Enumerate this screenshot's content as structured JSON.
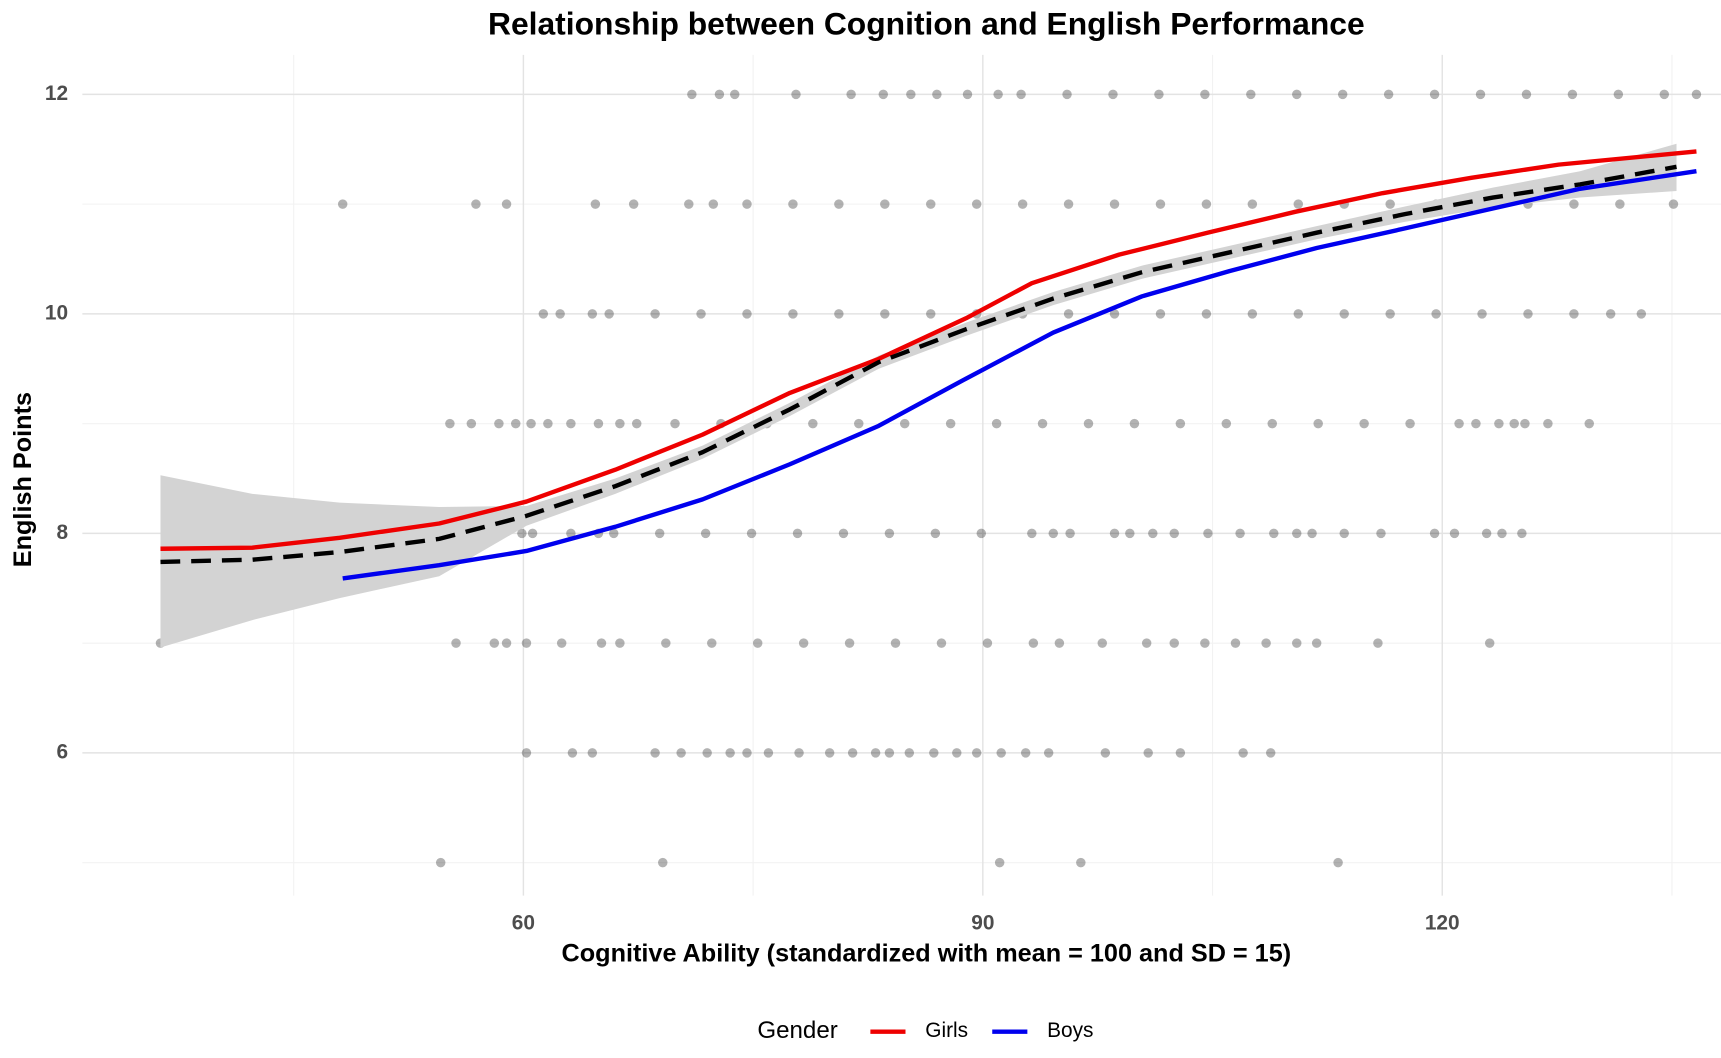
{
  "chart_data": {
    "type": "scatter",
    "title": "Relationship between Cognition and English Performance",
    "x_label": "Cognitive Ability (standardized with mean = 100 and SD = 15)",
    "y_label": "English Points",
    "xlim": [
      31.2,
      138.2
    ],
    "ylim": [
      4.7,
      12.36
    ],
    "xticks": [
      60,
      90,
      120
    ],
    "yticks": [
      6,
      8,
      10,
      12
    ],
    "xminor": [
      45,
      75,
      105,
      135
    ],
    "yminor": [
      5,
      7,
      9,
      11
    ],
    "grid": true,
    "legend_title": "Gender",
    "legend": "bottom",
    "series": [
      {
        "mode": "points",
        "color": "#000000",
        "opacity": 0.3,
        "x": [
          71,
          72.8,
          73.8,
          77.8,
          81.4,
          83.5,
          85.3,
          87,
          89,
          91,
          92.5,
          95.5,
          98.5,
          101.5,
          104.5,
          107.5,
          110.5,
          113.5,
          116.5,
          119.5,
          122.5,
          125.5,
          128.5,
          131.5,
          134.5,
          136.6,
          48.2,
          56.9,
          58.9,
          64.7,
          67.2,
          70.8,
          72.4,
          74.6,
          77.6,
          80.6,
          83.6,
          86.6,
          89.6,
          92.6,
          95.6,
          98.6,
          101.6,
          104.6,
          107.6,
          110.6,
          113.6,
          116.6,
          119.6,
          122.6,
          125.6,
          128.6,
          131.6,
          135.1,
          61.3,
          62.4,
          64.5,
          65.6,
          68.6,
          71.6,
          74.6,
          77.6,
          80.6,
          83.6,
          86.6,
          89.6,
          92.6,
          95.6,
          98.6,
          101.6,
          104.6,
          107.6,
          110.6,
          113.6,
          116.6,
          119.6,
          122.6,
          125.6,
          128.6,
          131,
          133,
          55.2,
          56.6,
          58.4,
          59.5,
          60.5,
          61.6,
          63.1,
          64.9,
          66.3,
          67.4,
          69.9,
          72.9,
          75.9,
          78.9,
          81.9,
          84.9,
          87.9,
          90.9,
          93.9,
          96.9,
          99.9,
          102.9,
          105.9,
          108.9,
          111.9,
          114.9,
          117.9,
          121.1,
          122.2,
          123.7,
          124.7,
          125.4,
          126.9,
          129.6,
          45.2,
          47,
          48,
          52.7,
          54.1,
          59.9,
          60.6,
          63.1,
          64.9,
          65.9,
          68.9,
          71.9,
          74.9,
          77.9,
          80.9,
          83.9,
          86.9,
          89.9,
          93.2,
          94.6,
          95.7,
          98.6,
          99.6,
          101.1,
          102.5,
          104.7,
          106.8,
          109,
          110.5,
          111.5,
          113.6,
          116,
          119.5,
          120.8,
          122.9,
          123.9,
          125.2,
          36.3,
          55.6,
          58.1,
          58.9,
          60.2,
          62.5,
          65.1,
          66.3,
          69.3,
          72.3,
          75.3,
          78.3,
          81.3,
          84.3,
          87.3,
          90.3,
          93.3,
          95,
          97.8,
          100.7,
          102.5,
          104.5,
          106.5,
          108.5,
          110.5,
          111.8,
          115.8,
          123.1,
          60.2,
          63.2,
          64.5,
          68.6,
          70.3,
          72,
          73.5,
          74.6,
          76,
          78,
          80,
          81.5,
          83,
          83.9,
          85.2,
          86.8,
          88.3,
          89.6,
          91.2,
          92.8,
          94.3,
          98,
          100.8,
          102.9,
          107,
          108.8,
          54.6,
          69.1,
          91.1,
          96.4,
          113.2
        ],
        "values": [
          12,
          12,
          12,
          12,
          12,
          12,
          12,
          12,
          12,
          12,
          12,
          12,
          12,
          12,
          12,
          12,
          12,
          12,
          12,
          12,
          12,
          12,
          12,
          12,
          12,
          12,
          11,
          11,
          11,
          11,
          11,
          11,
          11,
          11,
          11,
          11,
          11,
          11,
          11,
          11,
          11,
          11,
          11,
          11,
          11,
          11,
          11,
          11,
          11,
          11,
          11,
          11,
          11,
          11,
          10,
          10,
          10,
          10,
          10,
          10,
          10,
          10,
          10,
          10,
          10,
          10,
          10,
          10,
          10,
          10,
          10,
          10,
          10,
          10,
          10,
          10,
          10,
          10,
          10,
          10,
          10,
          9,
          9,
          9,
          9,
          9,
          9,
          9,
          9,
          9,
          9,
          9,
          9,
          9,
          9,
          9,
          9,
          9,
          9,
          9,
          9,
          9,
          9,
          9,
          9,
          9,
          9,
          9,
          9,
          9,
          9,
          9,
          9,
          9,
          9,
          8,
          8,
          8,
          8,
          8,
          8,
          8,
          8,
          8,
          8,
          8,
          8,
          8,
          8,
          8,
          8,
          8,
          8,
          8,
          8,
          8,
          8,
          8,
          8,
          8,
          8,
          8,
          8,
          8,
          8,
          8,
          8,
          8,
          8,
          8,
          8,
          8,
          7,
          7,
          7,
          7,
          7,
          7,
          7,
          7,
          7,
          7,
          7,
          7,
          7,
          7,
          7,
          7,
          7,
          7,
          7,
          7,
          7,
          7,
          7,
          7,
          7,
          7,
          7,
          7,
          6,
          6,
          6,
          6,
          6,
          6,
          6,
          6,
          6,
          6,
          6,
          6,
          6,
          6,
          6,
          6,
          6,
          6,
          6,
          6,
          6,
          6,
          6,
          6,
          6,
          6,
          5,
          5,
          5,
          5,
          5
        ]
      },
      {
        "name": "Girls",
        "mode": "line",
        "color": "#ee0000",
        "x": [
          36.3,
          42.3,
          48,
          54.5,
          60.2,
          66,
          71.7,
          77.4,
          83.2,
          88.9,
          93.2,
          98.9,
          104.7,
          110.4,
          116.1,
          121.9,
          127.6,
          136.6
        ],
        "values": [
          7.86,
          7.87,
          7.96,
          8.09,
          8.29,
          8.58,
          8.9,
          9.28,
          9.59,
          9.96,
          10.28,
          10.54,
          10.74,
          10.93,
          11.1,
          11.24,
          11.36,
          11.48
        ]
      },
      {
        "name": "Boys",
        "mode": "line",
        "color": "#0000ee",
        "x": [
          48.2,
          54.5,
          60.2,
          66,
          71.7,
          77.4,
          83.2,
          88.9,
          94.6,
          100.4,
          106.1,
          111.8,
          117.6,
          123.3,
          129,
          136.6
        ],
        "values": [
          7.59,
          7.71,
          7.84,
          8.06,
          8.31,
          8.63,
          8.98,
          9.41,
          9.83,
          10.16,
          10.39,
          10.6,
          10.78,
          10.96,
          11.14,
          11.3
        ]
      },
      {
        "mode": "line",
        "color": "#000000",
        "dash": true,
        "band_color": "#d3d3d3",
        "x": [
          36.3,
          42.3,
          48,
          54.5,
          60.2,
          66,
          71.7,
          77.4,
          83.2,
          88.9,
          94.6,
          100.4,
          106.1,
          111.8,
          117.6,
          123.3,
          129,
          135.3
        ],
        "values": [
          7.74,
          7.76,
          7.83,
          7.95,
          8.16,
          8.43,
          8.74,
          9.13,
          9.56,
          9.86,
          10.14,
          10.38,
          10.56,
          10.74,
          10.91,
          11.06,
          11.18,
          11.34
        ],
        "lower": [
          6.96,
          7.21,
          7.41,
          7.61,
          8.07,
          8.36,
          8.68,
          9.07,
          9.5,
          9.8,
          10.08,
          10.32,
          10.5,
          10.68,
          10.84,
          10.97,
          11.06,
          11.12
        ],
        "upper": [
          8.53,
          8.36,
          8.28,
          8.24,
          8.25,
          8.5,
          8.8,
          9.19,
          9.62,
          9.92,
          10.2,
          10.44,
          10.62,
          10.8,
          10.98,
          11.15,
          11.3,
          11.55
        ]
      }
    ]
  }
}
